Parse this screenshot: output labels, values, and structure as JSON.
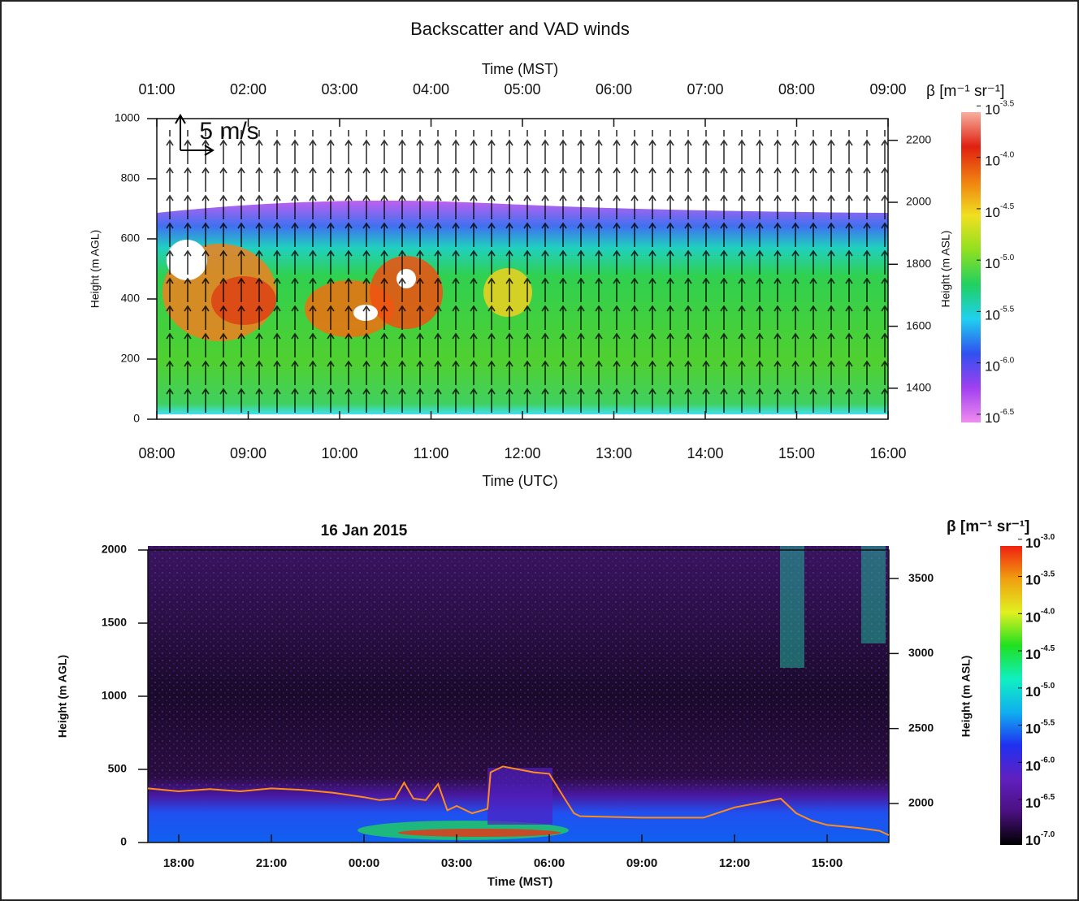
{
  "chart_data": [
    {
      "type": "heatmap",
      "title": "Backscatter and VAD winds",
      "x2label": "Time (MST)",
      "xlabel": "Time (UTC)",
      "xlim": [
        8,
        16
      ],
      "xticks": [
        {
          "value": 8,
          "label": "08:00"
        },
        {
          "value": 9,
          "label": "09:00"
        },
        {
          "value": 10,
          "label": "10:00"
        },
        {
          "value": 11,
          "label": "11:00"
        },
        {
          "value": 12,
          "label": "12:00"
        },
        {
          "value": 13,
          "label": "13:00"
        },
        {
          "value": 14,
          "label": "14:00"
        },
        {
          "value": 15,
          "label": "15:00"
        },
        {
          "value": 16,
          "label": "16:00"
        }
      ],
      "x2ticks": [
        {
          "value": 8,
          "label": "01:00"
        },
        {
          "value": 9,
          "label": "02:00"
        },
        {
          "value": 10,
          "label": "03:00"
        },
        {
          "value": 11,
          "label": "04:00"
        },
        {
          "value": 12,
          "label": "05:00"
        },
        {
          "value": 13,
          "label": "06:00"
        },
        {
          "value": 14,
          "label": "07:00"
        },
        {
          "value": 15,
          "label": "08:00"
        },
        {
          "value": 16,
          "label": "09:00"
        }
      ],
      "ylabel": "Height (m AGL)",
      "ylim": [
        0,
        1000
      ],
      "yticks": [
        0,
        200,
        400,
        600,
        800,
        1000
      ],
      "y2label": "Height (m ASL)",
      "y2lim": [
        1300,
        2270
      ],
      "y2ticks": [
        1400,
        1600,
        1800,
        2000,
        2200
      ],
      "annotation": "5 m/s",
      "colorbar": {
        "label": "β [m⁻¹ sr⁻¹]",
        "base": "10",
        "lim": [
          -6.58,
          -3.56
        ],
        "ticks": [
          {
            "value": -3.5,
            "label": "-3.5"
          },
          {
            "value": -4,
            "label": "-4.0"
          },
          {
            "value": -4.5,
            "label": "-4.5"
          },
          {
            "value": -5,
            "label": "-5.0"
          },
          {
            "value": -5.5,
            "label": "-5.5"
          },
          {
            "value": -6,
            "label": "-6.0"
          },
          {
            "value": -6.5,
            "label": "-6.5"
          }
        ],
        "colors": [
          "#f08cf0",
          "#a040f0",
          "#3050f0",
          "#20d0f0",
          "#20d060",
          "#90e020",
          "#f0e020",
          "#f08010",
          "#e02010",
          "#f8b0a0"
        ]
      }
    },
    {
      "type": "heatmap",
      "title": "16 Jan 2015",
      "xlabel": "Time (MST)",
      "xlim": [
        -7,
        17
      ],
      "xticks": [
        {
          "value": -6,
          "label": "18:00"
        },
        {
          "value": -3,
          "label": "21:00"
        },
        {
          "value": 0,
          "label": "00:00"
        },
        {
          "value": 3,
          "label": "03:00"
        },
        {
          "value": 6,
          "label": "06:00"
        },
        {
          "value": 9,
          "label": "09:00"
        },
        {
          "value": 12,
          "label": "12:00"
        },
        {
          "value": 15,
          "label": "15:00"
        }
      ],
      "ylabel": "Height (m AGL)",
      "ylim": [
        0,
        2000
      ],
      "yticks": [
        0,
        500,
        1000,
        1500,
        2000
      ],
      "y2label": "Height (m ASL)",
      "y2lim": [
        1740,
        3690
      ],
      "y2ticks": [
        2000,
        2500,
        3000,
        3500
      ],
      "x": [
        -7,
        -6,
        -5,
        -4,
        -3,
        -2,
        -1,
        0,
        0.5,
        1,
        1.3,
        1.6,
        2,
        2.4,
        2.7,
        3,
        3.5,
        4,
        4.1,
        4.5,
        5,
        5.5,
        6,
        6.5,
        6.8,
        7,
        9,
        11,
        12,
        13,
        13.5,
        14,
        14.5,
        15,
        16,
        16.7,
        17
      ],
      "values": [
        370,
        350,
        365,
        350,
        370,
        360,
        340,
        310,
        290,
        300,
        410,
        300,
        290,
        400,
        220,
        250,
        200,
        230,
        480,
        520,
        500,
        480,
        470,
        300,
        200,
        180,
        170,
        170,
        240,
        280,
        300,
        200,
        150,
        120,
        100,
        80,
        50
      ],
      "color": "#ff8c1a",
      "colorbar": {
        "label": "β [m⁻¹ sr⁻¹]",
        "base": "10",
        "lim": [
          -7.11,
          -3.09
        ],
        "ticks": [
          {
            "value": -3,
            "label": "-3.0"
          },
          {
            "value": -3.5,
            "label": "-3.5"
          },
          {
            "value": -4,
            "label": "-4.0"
          },
          {
            "value": -4.5,
            "label": "-4.5"
          },
          {
            "value": -5,
            "label": "-5.0"
          },
          {
            "value": -5.5,
            "label": "-5.5"
          },
          {
            "value": -6,
            "label": "-6.0"
          },
          {
            "value": -6.5,
            "label": "-6.5"
          },
          {
            "value": -7,
            "label": "-7.0"
          }
        ],
        "colors": [
          "#000000",
          "#4a1080",
          "#6020c0",
          "#2030f0",
          "#10b0f0",
          "#10f0c0",
          "#20e020",
          "#e0f020",
          "#f0a010",
          "#f02010"
        ]
      }
    }
  ]
}
